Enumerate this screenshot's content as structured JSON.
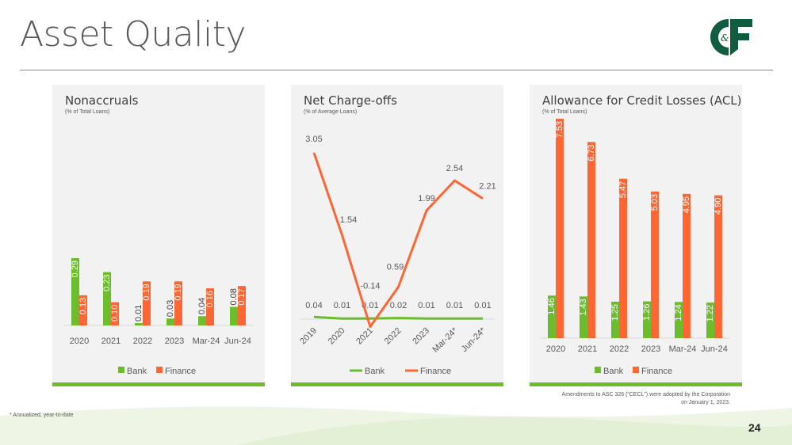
{
  "header": {
    "title": "Asset Quality",
    "logo_text": "C&F"
  },
  "colors": {
    "bank": "#6cbd2c",
    "finance": "#ff6633",
    "logo": "#0f5c3e"
  },
  "footer": {
    "footnote": "* Annualized, year-to-date",
    "cecl_note_line1": "Amendments to ASC 326 (“CECL”) were adopted by the Corporation",
    "cecl_note_line2": "on January 1, 2023.",
    "page_number": "24"
  },
  "chart_data": [
    {
      "type": "bar",
      "title": "Nonaccruals",
      "subtitle": "(% of Total Loans)",
      "categories": [
        "2020",
        "2021",
        "2022",
        "2023",
        "Mar-24",
        "Jun-24"
      ],
      "series": [
        {
          "name": "Bank",
          "values": [
            0.29,
            0.23,
            0.01,
            0.03,
            0.04,
            0.08
          ],
          "labels": [
            "0.29",
            "0.23",
            "0.01",
            "0.03",
            "0.04",
            "0.08"
          ]
        },
        {
          "name": "Finance",
          "values": [
            0.13,
            0.1,
            0.19,
            0.19,
            0.16,
            0.17
          ],
          "labels": [
            "0.13",
            "0.10",
            "0.19",
            "0.19",
            "0.16",
            "0.17"
          ]
        }
      ],
      "ylim": [
        0,
        0.32
      ],
      "legend": "bottom"
    },
    {
      "type": "line",
      "title": "Net Charge-offs",
      "subtitle": "(% of Average Loans)",
      "categories": [
        "2019",
        "2020",
        "2021",
        "2022",
        "2023",
        "Mar-24*",
        "Jun-24*"
      ],
      "series": [
        {
          "name": "Bank",
          "values": [
            0.04,
            0.01,
            0.01,
            0.02,
            0.01,
            0.01,
            0.01
          ],
          "labels": [
            "0.04",
            "0.01",
            "0.01",
            "0.02",
            "0.01",
            "0.01",
            "0.01"
          ]
        },
        {
          "name": "Finance",
          "values": [
            3.05,
            1.54,
            -0.14,
            0.59,
            1.99,
            2.54,
            2.21
          ],
          "labels": [
            "3.05",
            "1.54",
            "-0.14",
            "0.59",
            "1.99",
            "2.54",
            "2.21"
          ]
        }
      ],
      "ylim": [
        -0.2,
        3.3
      ],
      "legend": "bottom"
    },
    {
      "type": "bar",
      "title": "Allowance for Credit Losses (ACL)",
      "subtitle": "(% of Total Loans)",
      "categories": [
        "2020",
        "2021",
        "2022",
        "2023",
        "Mar-24",
        "Jun-24"
      ],
      "series": [
        {
          "name": "Bank",
          "values": [
            1.46,
            1.43,
            1.25,
            1.26,
            1.24,
            1.22
          ],
          "labels": [
            "1.46",
            "1.43",
            "1.25",
            "1.26",
            "1.24",
            "1.22"
          ]
        },
        {
          "name": "Finance",
          "values": [
            7.53,
            6.73,
            5.47,
            5.03,
            4.95,
            4.9
          ],
          "labels": [
            "7.53",
            "6.73",
            "5.47",
            "5.03",
            "4.95",
            "4.90"
          ]
        }
      ],
      "ylim": [
        0,
        8
      ],
      "legend": "bottom"
    }
  ]
}
